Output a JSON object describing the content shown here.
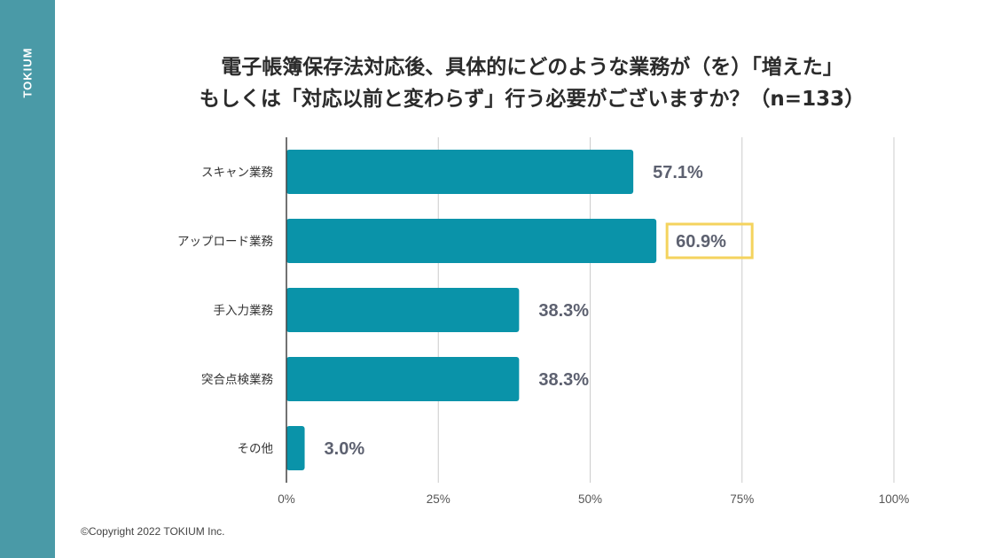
{
  "brand": "TOKIUM",
  "footer": "©Copyright 2022 TOKIUM Inc.",
  "colors": {
    "bar": "#0a93a9",
    "grid": "#cccccc",
    "axis": "#444444",
    "highlight": "#f4d35e",
    "side": "#4a9aa7",
    "value": "#5d6170"
  },
  "chart_data": {
    "type": "bar",
    "orientation": "horizontal",
    "title": [
      "電子帳簿保存法対応後、具体的にどのような業務が（を）「増えた」",
      "もしくは「対応以前と変わらず」行う必要がございますか？（n=133）"
    ],
    "categories": [
      "スキャン業務",
      "アップロード業務",
      "手入力業務",
      "突合点検業務",
      "その他"
    ],
    "values": [
      57.1,
      60.9,
      38.3,
      38.3,
      3.0
    ],
    "value_labels": [
      "57.1%",
      "60.9%",
      "38.3%",
      "38.3%",
      "3.0%"
    ],
    "highlighted_index": 1,
    "xlim": [
      0,
      100
    ],
    "xticks": [
      0,
      25,
      50,
      75,
      100
    ],
    "xtick_labels": [
      "0%",
      "25%",
      "50%",
      "75%",
      "100%"
    ],
    "grid": true,
    "xlabel": "",
    "ylabel": ""
  }
}
